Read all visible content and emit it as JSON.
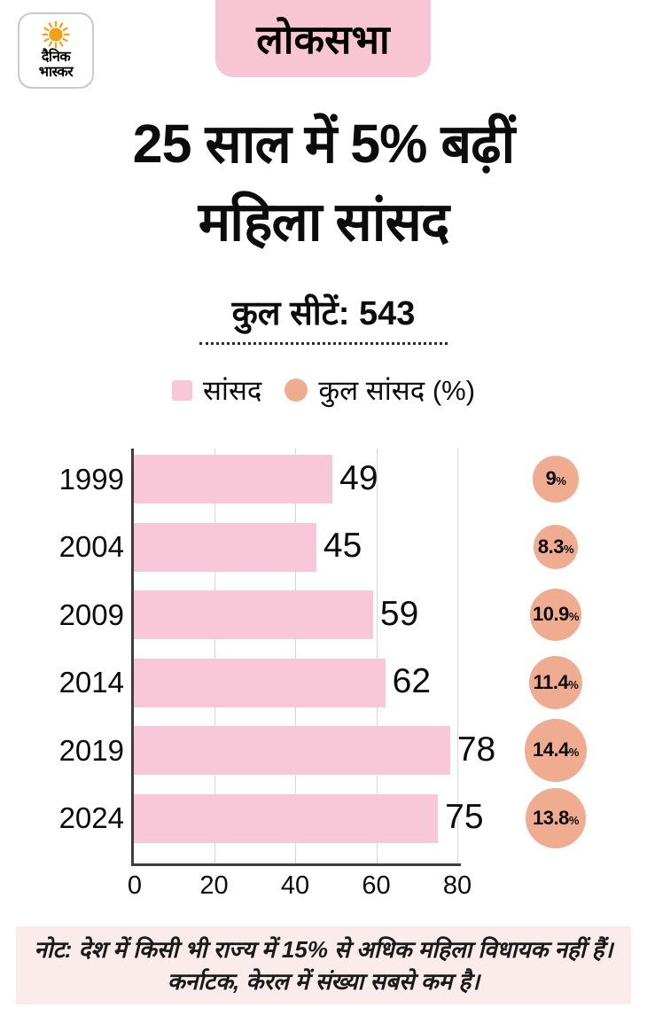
{
  "logo": {
    "name_line1": "दैनिक",
    "name_line2": "भास्कर",
    "sun_color": "#f2a017"
  },
  "badge": {
    "label": "लोकसभा",
    "bg": "#f8c5d3"
  },
  "title": {
    "line1": "25 साल में 5% बढ़ीं",
    "line2": "महिला सांसद"
  },
  "subtitle": "कुल सीटें: 543",
  "legend": {
    "items": [
      {
        "label": "सांसद",
        "swatch": "square",
        "color": "#f8c8d8"
      },
      {
        "label": "कुल सांसद (%)",
        "swatch": "circle",
        "color": "#efac90"
      }
    ]
  },
  "chart_data": {
    "type": "bar",
    "orientation": "horizontal",
    "title": "25 साल में 5% बढ़ीं महिला सांसद",
    "categories": [
      "1999",
      "2004",
      "2009",
      "2014",
      "2019",
      "2024"
    ],
    "series": [
      {
        "name": "सांसद",
        "values": [
          49,
          45,
          59,
          62,
          78,
          75
        ]
      },
      {
        "name": "कुल सांसद (%)",
        "values": [
          9,
          8.3,
          10.9,
          11.4,
          14.4,
          13.8
        ]
      }
    ],
    "pct_labels": [
      "9",
      "8.3",
      "10.9",
      "11.4",
      "14.4",
      "13.8"
    ],
    "xlim": [
      0,
      80
    ],
    "xticks": [
      0,
      20,
      40,
      60,
      80
    ],
    "grid": true,
    "legend_position": "top",
    "bar_color": "#f8c8d8",
    "circle_color": "#efac90"
  },
  "note": {
    "line1": "नोट: देश में किसी भी राज्य में 15% से अधिक महिला विधायक नहीं हैं।",
    "line2": "कर्नाटक, केरल में संख्या सबसे कम है।",
    "bg": "#fbecec"
  }
}
